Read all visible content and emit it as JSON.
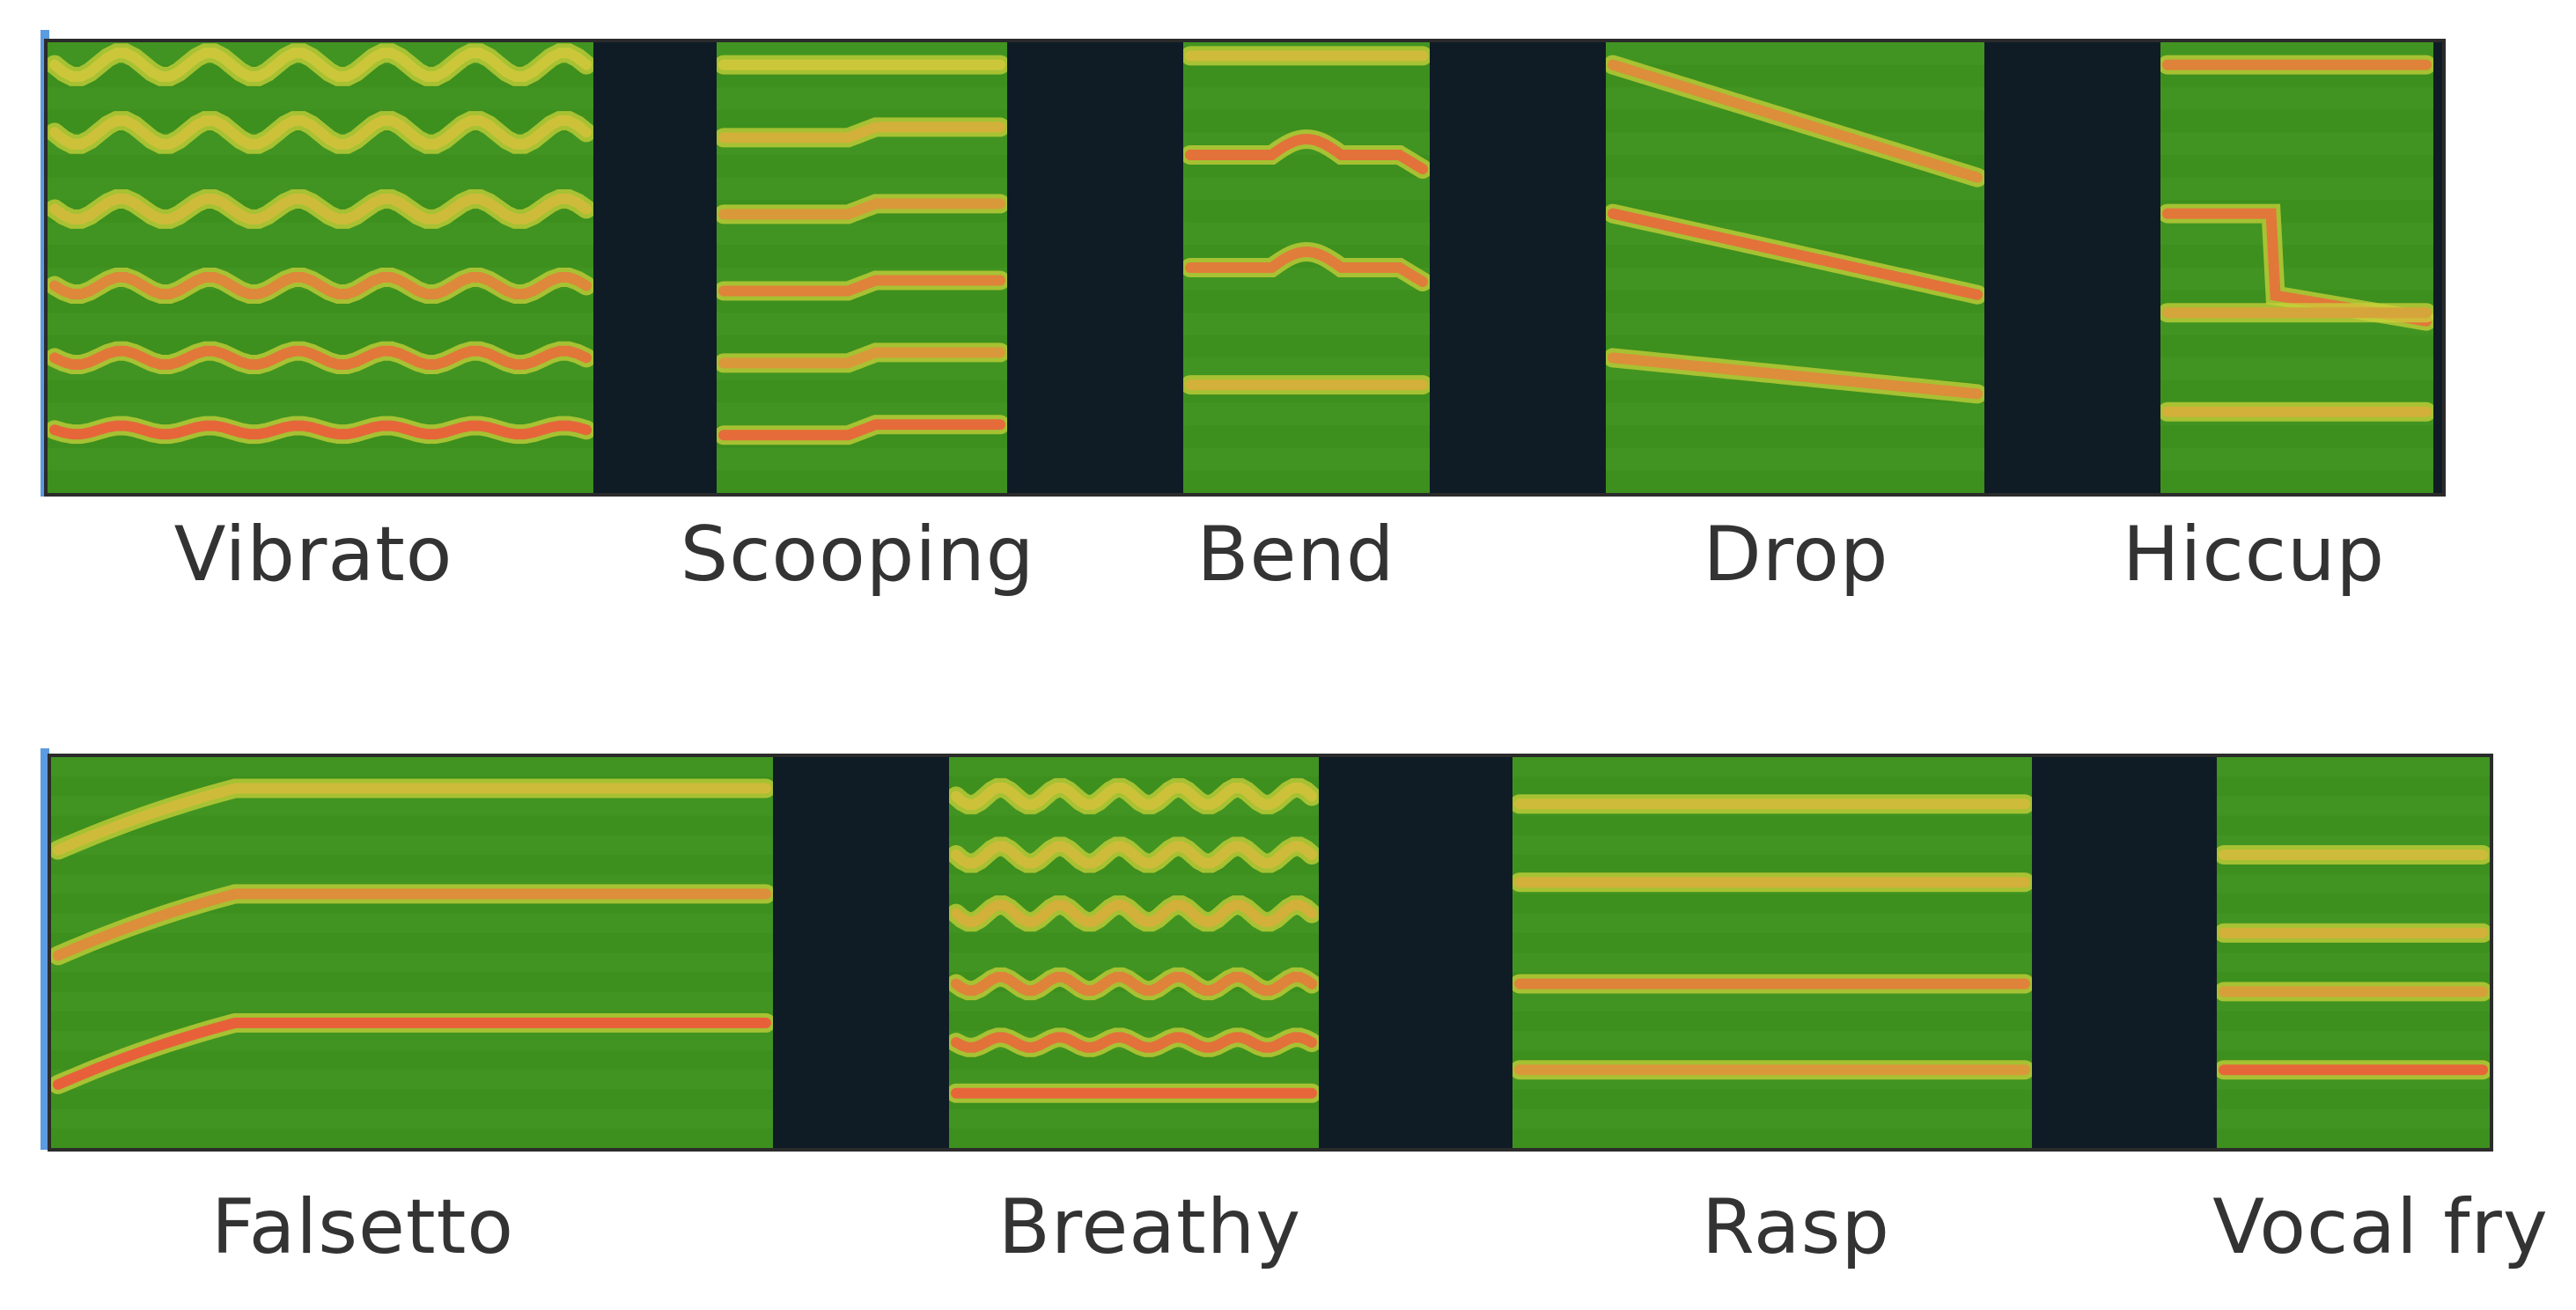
{
  "rows": [
    {
      "labels": [
        "Vibrato",
        "Scooping",
        "Bend",
        "Drop",
        "Hiccup"
      ]
    },
    {
      "labels": [
        "Falsetto",
        "Breathy",
        "Rasp",
        "Vocal fry"
      ]
    }
  ],
  "colors": {
    "background_gap": "#0f1c26",
    "spectrogram_base": "#3d8f1e",
    "harmonic_mid": "#c9d23a",
    "harmonic_hot": "#e8603a",
    "accent_bar": "#5b9be0",
    "label_text": "#333333"
  }
}
